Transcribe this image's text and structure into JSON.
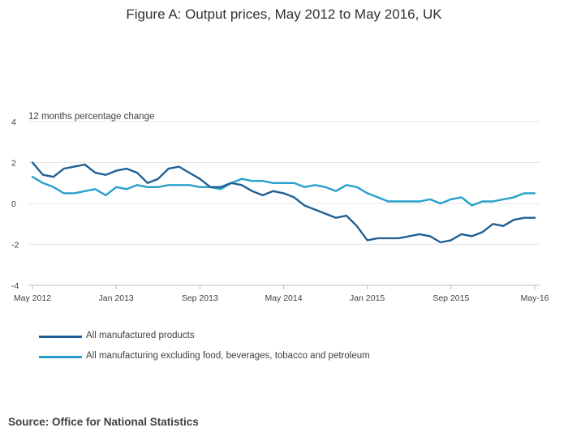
{
  "title": "Figure A: Output prices, May 2012 to May 2016, UK",
  "source": "Source: Office for National Statistics",
  "colors": {
    "series1": "#206095",
    "series2": "#27a0cc",
    "grid": "#e6e6e6",
    "axis": "#bdbdbd",
    "text": "#414042"
  },
  "chart_data": {
    "type": "line",
    "ylabel": "12 months percentage change",
    "ylim": [
      -4,
      4
    ],
    "yticks": [
      4,
      2,
      0,
      -2,
      -4
    ],
    "xtick_labels": [
      "May 2012",
      "Jan 2013",
      "Sep 2013",
      "May 2014",
      "Jan 2015",
      "Sep 2015",
      "May-16"
    ],
    "xtick_indices": [
      0,
      8,
      16,
      24,
      32,
      40,
      48
    ],
    "x": [
      "2012-05",
      "2012-06",
      "2012-07",
      "2012-08",
      "2012-09",
      "2012-10",
      "2012-11",
      "2012-12",
      "2013-01",
      "2013-02",
      "2013-03",
      "2013-04",
      "2013-05",
      "2013-06",
      "2013-07",
      "2013-08",
      "2013-09",
      "2013-10",
      "2013-11",
      "2013-12",
      "2014-01",
      "2014-02",
      "2014-03",
      "2014-04",
      "2014-05",
      "2014-06",
      "2014-07",
      "2014-08",
      "2014-09",
      "2014-10",
      "2014-11",
      "2014-12",
      "2015-01",
      "2015-02",
      "2015-03",
      "2015-04",
      "2015-05",
      "2015-06",
      "2015-07",
      "2015-08",
      "2015-09",
      "2015-10",
      "2015-11",
      "2015-12",
      "2016-01",
      "2016-02",
      "2016-03",
      "2016-04",
      "2016-05"
    ],
    "grid": true,
    "legend_position": "bottom",
    "series": [
      {
        "name": "All manufactured products",
        "values": [
          2.0,
          1.4,
          1.3,
          1.7,
          1.8,
          1.9,
          1.5,
          1.4,
          1.6,
          1.7,
          1.5,
          1.0,
          1.2,
          1.7,
          1.8,
          1.5,
          1.2,
          0.8,
          0.8,
          1.0,
          0.9,
          0.6,
          0.4,
          0.6,
          0.5,
          0.3,
          -0.1,
          -0.3,
          -0.5,
          -0.7,
          -0.6,
          -1.1,
          -1.8,
          -1.7,
          -1.7,
          -1.7,
          -1.6,
          -1.5,
          -1.6,
          -1.9,
          -1.8,
          -1.5,
          -1.6,
          -1.4,
          -1.0,
          -1.1,
          -0.8,
          -0.7,
          -0.7
        ]
      },
      {
        "name": "All manufacturing excluding food, beverages, tobacco and petroleum",
        "values": [
          1.3,
          1.0,
          0.8,
          0.5,
          0.5,
          0.6,
          0.7,
          0.4,
          0.8,
          0.7,
          0.9,
          0.8,
          0.8,
          0.9,
          0.9,
          0.9,
          0.8,
          0.8,
          0.7,
          1.0,
          1.2,
          1.1,
          1.1,
          1.0,
          1.0,
          1.0,
          0.8,
          0.9,
          0.8,
          0.6,
          0.9,
          0.8,
          0.5,
          0.3,
          0.1,
          0.1,
          0.1,
          0.1,
          0.2,
          0.0,
          0.2,
          0.3,
          -0.1,
          0.1,
          0.1,
          0.2,
          0.3,
          0.5,
          0.5
        ]
      }
    ]
  }
}
